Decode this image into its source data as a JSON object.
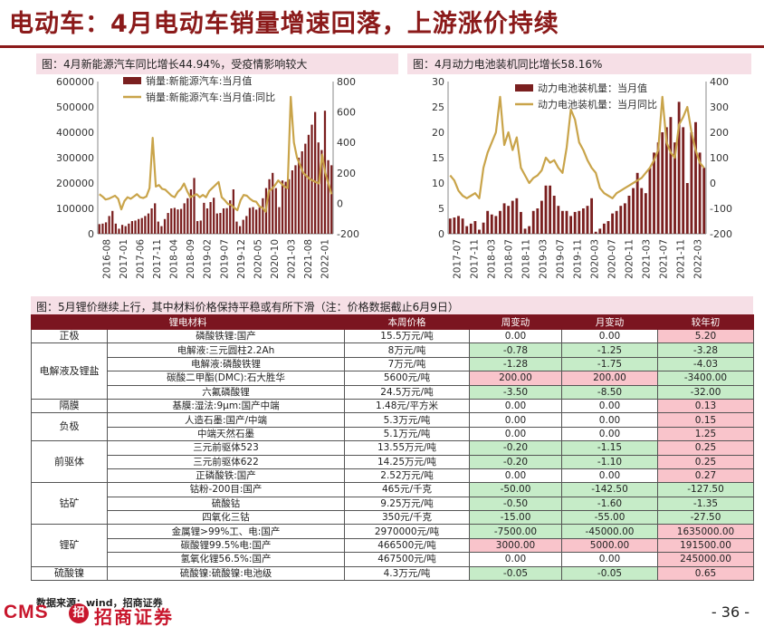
{
  "page": {
    "title": "电动车：4月电动车销量增速回落，上游涨价持续",
    "page_number": "- 36 -",
    "source": "数据来源：wind，招商证券",
    "logo": "CMS 招商证券"
  },
  "colors": {
    "brand": "#8b1a1a",
    "bar": "#7a1f1f",
    "line": "#c9a44a",
    "pos": "#f9c4cb",
    "neg": "#c6ecc8"
  },
  "chart_data": [
    {
      "type": "bar",
      "caption": "图：4月新能源汽车同比增长44.94%，受疫情影响较大",
      "legend": [
        "销量:新能源汽车:当月值",
        "销量:新能源汽车:当月值:同比"
      ],
      "x_ticks": [
        "2016-08",
        "2017-01",
        "2017-06",
        "2017-11",
        "2018-04",
        "2018-09",
        "2019-02",
        "2019-07",
        "2019-12",
        "2020-05",
        "2020-10",
        "2021-03",
        "2021-08",
        "2022-01"
      ],
      "y_left": {
        "min": 0,
        "max": 600000,
        "ticks": [
          "0",
          "100000",
          "200000",
          "300000",
          "400000",
          "500000",
          "600000"
        ]
      },
      "y_right": {
        "min": -200,
        "max": 800,
        "ticks": [
          "-200",
          "0",
          "200",
          "400",
          "600",
          "800"
        ]
      },
      "series": [
        {
          "name": "销量:新能源汽车:当月值",
          "type": "bar",
          "values": [
            38000,
            40000,
            45000,
            70000,
            90000,
            40000,
            20000,
            35000,
            30000,
            40000,
            50000,
            52000,
            58000,
            62000,
            70000,
            80000,
            100000,
            120000,
            48000,
            30000,
            58000,
            82000,
            100000,
            102000,
            96000,
            98000,
            120000,
            140000,
            175000,
            220000,
            50000,
            52000,
            122000,
            100000,
            125000,
            142000,
            80000,
            82000,
            100000,
            101000,
            132000,
            175000,
            48000,
            30000,
            55000,
            70000,
            102000,
            105000,
            95000,
            103000,
            140000,
            180000,
            215000,
            240000,
            180000,
            105000,
            210000,
            205000,
            215000,
            250000,
            270000,
            300000,
            325000,
            355000,
            390000,
            430000,
            480000,
            360000,
            330000,
            485000,
            290000,
            270000
          ]
        },
        {
          "name": "销量:新能源汽车:当月值:同比",
          "type": "line",
          "values": [
            60,
            45,
            25,
            30,
            40,
            50,
            30,
            -40,
            15,
            40,
            30,
            45,
            60,
            40,
            35,
            45,
            100,
            430,
            110,
            120,
            95,
            90,
            70,
            50,
            40,
            75,
            95,
            130,
            80,
            40,
            50,
            60,
            40,
            55,
            40,
            80,
            100,
            120,
            140,
            40,
            20,
            -5,
            -10,
            -30,
            -45,
            20,
            55,
            50,
            30,
            15,
            10,
            -20,
            -30,
            -55,
            80,
            95,
            120,
            150,
            130,
            110,
            100,
            700,
            400,
            300,
            250,
            200,
            180,
            160,
            150,
            140,
            130,
            320,
            200,
            130,
            60
          ]
        }
      ]
    },
    {
      "type": "bar",
      "caption": "图：4月动力电池装机同比增长58.16%",
      "legend": [
        "动力电池装机量：当月值",
        "动力电池装机量：当月同比"
      ],
      "x_ticks": [
        "2017-07",
        "2017-11",
        "2018-03",
        "2018-07",
        "2018-11",
        "2019-03",
        "2019-07",
        "2019-11",
        "2020-03",
        "2020-07",
        "2020-11",
        "2021-03",
        "2021-07",
        "2021-11",
        "2022-03"
      ],
      "y_left": {
        "min": 0,
        "max": 30,
        "ticks": [
          "0",
          "5",
          "10",
          "15",
          "20",
          "25",
          "30"
        ]
      },
      "y_right": {
        "min": -200,
        "max": 400,
        "ticks": [
          "-200",
          "-100",
          "0",
          "100",
          "200",
          "300",
          "400"
        ]
      },
      "series": [
        {
          "name": "动力电池装机量：当月值",
          "type": "bar",
          "values": [
            3,
            3.2,
            3.5,
            3,
            1.5,
            2,
            2.5,
            0.8,
            2.2,
            4.5,
            3.8,
            3.5,
            4.5,
            6,
            5.5,
            6.5,
            7,
            4.3,
            1,
            1.5,
            4.5,
            5,
            6.5,
            9.5,
            9.5,
            7.5,
            5.5,
            4.5,
            4.5,
            3.5,
            4.3,
            4.5,
            5,
            5.5,
            7,
            0.4,
            1,
            2,
            2.5,
            4,
            4.5,
            5.5,
            6,
            7.5,
            9,
            12,
            9,
            8,
            13,
            16,
            18,
            20,
            21,
            23,
            18,
            26,
            21,
            10,
            20,
            22,
            16,
            13
          ]
        },
        {
          "name": "动力电池装机量：当月同比",
          "type": "line",
          "values": [
            30,
            10,
            -30,
            -50,
            -60,
            -50,
            -40,
            -60,
            60,
            120,
            160,
            200,
            340,
            150,
            200,
            130,
            180,
            60,
            30,
            0,
            20,
            30,
            50,
            100,
            80,
            90,
            60,
            40,
            140,
            290,
            250,
            160,
            130,
            90,
            60,
            40,
            -20,
            -40,
            -50,
            -60,
            -40,
            -30,
            -20,
            -10,
            0,
            10,
            20,
            40,
            60,
            90,
            130,
            340,
            160,
            120,
            100,
            230,
            260,
            300,
            200,
            130,
            80,
            60
          ]
        }
      ]
    }
  ],
  "table": {
    "caption": "图：5月锂价继续上行，其中材料价格保持平稳或有所下滑（注：价格数据截止6月9日）",
    "headers": [
      "锂电材料",
      "",
      "本周价格",
      "周变动",
      "月变动",
      "较年初"
    ],
    "rows": [
      {
        "cat": "正极",
        "span": 1,
        "item": "磷酸铁锂:国产",
        "price": "15.5万元/吨",
        "w": "0.00",
        "m": "0.00",
        "y": "5.20"
      },
      {
        "cat": "电解液及锂盐",
        "span": 4,
        "item": "电解液:三元圆柱2.2Ah",
        "price": "8万元/吨",
        "w": "-0.78",
        "m": "-1.25",
        "y": "-3.28"
      },
      {
        "cat": "",
        "span": 0,
        "item": "电解液:磷酸铁锂",
        "price": "7万元/吨",
        "w": "-1.28",
        "m": "-1.75",
        "y": "-4.03"
      },
      {
        "cat": "",
        "span": 0,
        "item": "碳酸二甲酯(DMC):石大胜华",
        "price": "5600元/吨",
        "w": "200.00",
        "m": "200.00",
        "y": "-3400.00"
      },
      {
        "cat": "",
        "span": 0,
        "item": "六氟磷酸锂",
        "price": "24.5万元/吨",
        "w": "-3.50",
        "m": "-8.50",
        "y": "-32.00"
      },
      {
        "cat": "隔膜",
        "span": 1,
        "item": "基膜:湿法:9μm:国产中端",
        "price": "1.48元/平方米",
        "w": "0.00",
        "m": "0.00",
        "y": "0.13"
      },
      {
        "cat": "负极",
        "span": 2,
        "item": "人造石墨:国产/中端",
        "price": "5.3万元/吨",
        "w": "0.00",
        "m": "0.00",
        "y": "0.15"
      },
      {
        "cat": "",
        "span": 0,
        "item": "中端天然石墨",
        "price": "5.1万元/吨",
        "w": "0.00",
        "m": "0.00",
        "y": "1.25"
      },
      {
        "cat": "前驱体",
        "span": 3,
        "item": "三元前驱体523",
        "price": "13.55万元/吨",
        "w": "-0.20",
        "m": "-1.15",
        "y": "0.25"
      },
      {
        "cat": "",
        "span": 0,
        "item": "三元前驱体622",
        "price": "14.25万元/吨",
        "w": "-0.20",
        "m": "-1.10",
        "y": "0.25"
      },
      {
        "cat": "",
        "span": 0,
        "item": "正磷酸铁:国产",
        "price": "2.52万元/吨",
        "w": "0.00",
        "m": "0.00",
        "y": "0.27"
      },
      {
        "cat": "钴矿",
        "span": 3,
        "item": "钴粉-200目:国产",
        "price": "465元/千克",
        "w": "-50.00",
        "m": "-142.50",
        "y": "-127.50"
      },
      {
        "cat": "",
        "span": 0,
        "item": "硫酸钴",
        "price": "9.25万元/吨",
        "w": "-0.50",
        "m": "-1.60",
        "y": "-1.35"
      },
      {
        "cat": "",
        "span": 0,
        "item": "四氧化三钴",
        "price": "350元/千克",
        "w": "-15.00",
        "m": "-55.00",
        "y": "-27.50"
      },
      {
        "cat": "锂矿",
        "span": 3,
        "item": "金属锂>99%工、电:国产",
        "price": "2970000元/吨",
        "w": "-7500.00",
        "m": "-45000.00",
        "y": "1635000.00"
      },
      {
        "cat": "",
        "span": 0,
        "item": "碳酸锂99.5%电:国产",
        "price": "466500元/吨",
        "w": "3000.00",
        "m": "5000.00",
        "y": "191500.00"
      },
      {
        "cat": "",
        "span": 0,
        "item": "氢氧化锂56.5%:国产",
        "price": "467500元/吨",
        "w": "0.00",
        "m": "0.00",
        "y": "245000.00"
      },
      {
        "cat": "硫酸镍",
        "span": 1,
        "item": "硫酸镍:硫酸镍:电池级",
        "price": "4.3万元/吨",
        "w": "-0.05",
        "m": "-0.05",
        "y": "0.65"
      }
    ]
  }
}
